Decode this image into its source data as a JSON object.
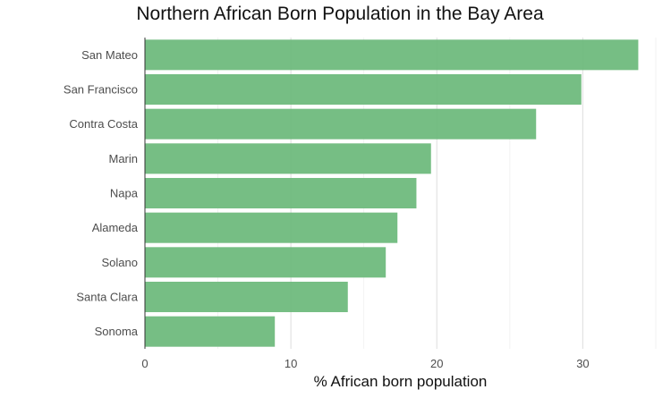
{
  "chart_data": {
    "type": "bar",
    "orientation": "horizontal",
    "title": "Northern African Born Population in the Bay Area",
    "xlabel": "% African born population",
    "ylabel": "",
    "categories": [
      "San Mateo",
      "San Francisco",
      "Contra Costa",
      "Marin",
      "Napa",
      "Alameda",
      "Solano",
      "Santa Clara",
      "Sonoma"
    ],
    "values": [
      33.8,
      29.9,
      26.8,
      19.6,
      18.6,
      17.3,
      16.5,
      13.9,
      8.9
    ],
    "xlim": [
      0,
      35
    ],
    "xticks": [
      0,
      10,
      20,
      30
    ],
    "grid": true,
    "bar_color": "#6ab87a"
  }
}
